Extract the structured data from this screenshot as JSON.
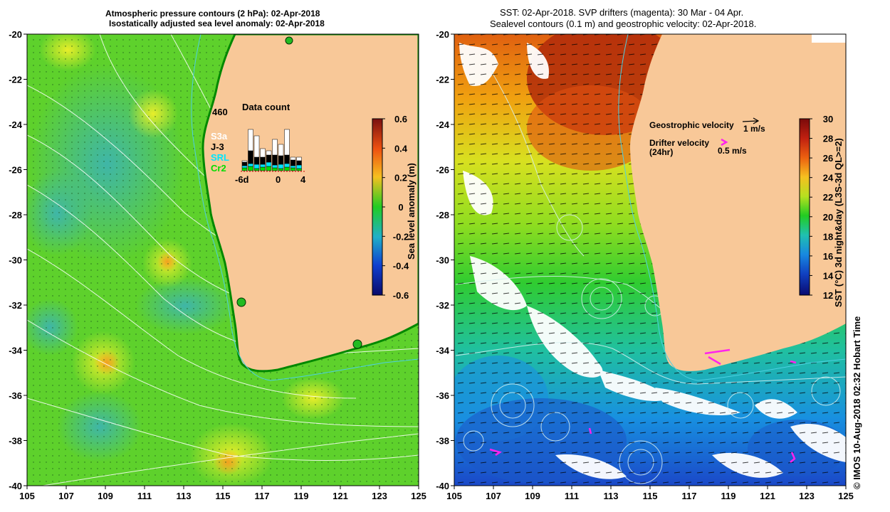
{
  "left_map": {
    "title_line1": "Atmospheric pressure contours (2 hPa): 02-Apr-2018",
    "title_line2": "Isostatically adjusted sea level anomaly: 02-Apr-2018",
    "x_ticks": [
      "105",
      "107",
      "109",
      "111",
      "113",
      "115",
      "117",
      "119",
      "121",
      "123",
      "125"
    ],
    "y_ticks": [
      "-20",
      "-22",
      "-24",
      "-26",
      "-28",
      "-30",
      "-32",
      "-34",
      "-36",
      "-38",
      "-40"
    ],
    "colorbar": {
      "label": "Sea level anomaly (m)",
      "ticks": [
        "0.6",
        "0.4",
        "0.2",
        "0",
        "-0.2",
        "-0.4",
        "-0.6"
      ]
    },
    "data_count": {
      "title": "Data count",
      "max_label": "460",
      "x_labels": [
        "-6d",
        "0",
        "4"
      ],
      "legend": [
        {
          "name": "S3a",
          "color": "#ffffff"
        },
        {
          "name": "J-3",
          "color": "#000000"
        },
        {
          "name": "SRL",
          "color": "#00e5ff"
        },
        {
          "name": "Cr2",
          "color": "#00dd00"
        }
      ]
    }
  },
  "right_map": {
    "title_line1": "SST: 02-Apr-2018. SVP drifters (magenta): 30 Mar - 04 Apr.",
    "title_line2": "Sealevel contours (0.1 m) and geostrophic velocity: 02-Apr-2018.",
    "x_ticks": [
      "105",
      "107",
      "109",
      "111",
      "113",
      "115",
      "117",
      "119",
      "121",
      "123",
      "125"
    ],
    "y_ticks": [
      "-20",
      "-22",
      "-24",
      "-26",
      "-28",
      "-30",
      "-32",
      "-34",
      "-36",
      "-38",
      "-40"
    ],
    "legend": {
      "geo_label": "Geostrophic velocity",
      "geo_scale": "1 m/s",
      "drifter_label": "Drifter velocity",
      "drifter_sub": "(24hr)",
      "drifter_scale": "0.5 m/s"
    },
    "colorbar": {
      "label": "SST (°C) 3d night&day (L3S-3d QL>=2)",
      "ticks": [
        "30",
        "28",
        "26",
        "24",
        "22",
        "20",
        "18",
        "16",
        "14",
        "12"
      ]
    }
  },
  "credit": "© IMOS 10-Aug-2018 02:32 Hobart Time"
}
